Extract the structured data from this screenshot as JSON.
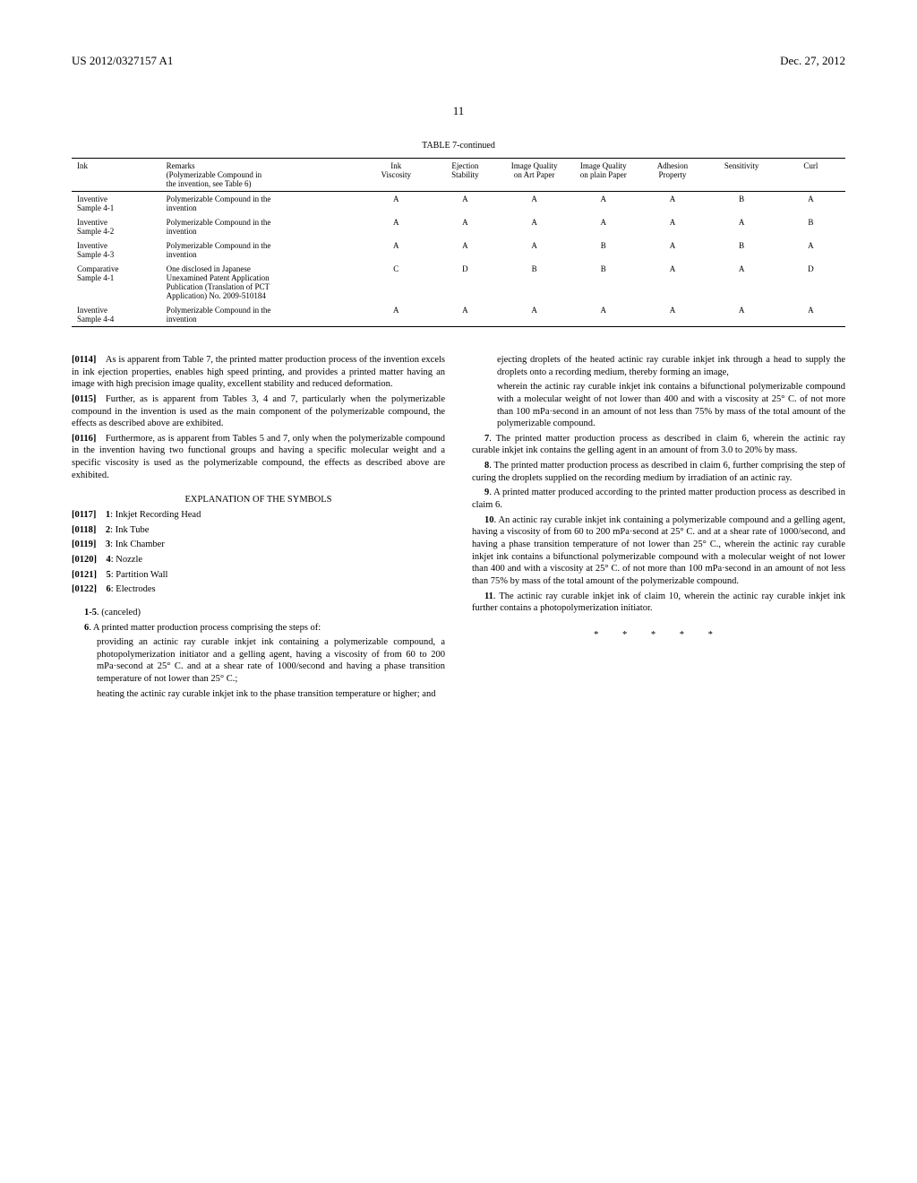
{
  "header": {
    "left": "US 2012/0327157 A1",
    "right": "Dec. 27, 2012"
  },
  "page_number": "11",
  "table": {
    "title": "TABLE 7-continued",
    "columns": [
      "Ink",
      "Remarks\n(Polymerizable Compound in\nthe invention, see Table 6)",
      "Ink\nViscosity",
      "Ejection\nStability",
      "Image Quality\non Art Paper",
      "Image Quality\non plain Paper",
      "Adhesion\nProperty",
      "Sensitivity",
      "Curl"
    ],
    "rows": [
      [
        "Inventive\nSample 4-1",
        "Polymerizable Compound in the\ninvention",
        "A",
        "A",
        "A",
        "A",
        "A",
        "B",
        "A"
      ],
      [
        "Inventive\nSample 4-2",
        "Polymerizable Compound in the\ninvention",
        "A",
        "A",
        "A",
        "A",
        "A",
        "A",
        "B"
      ],
      [
        "Inventive\nSample 4-3",
        "Polymerizable Compound in the\ninvention",
        "A",
        "A",
        "A",
        "B",
        "A",
        "B",
        "A"
      ],
      [
        "Comparative\nSample 4-1",
        "One disclosed in Japanese\nUnexamined Patent Application\nPublication (Translation of PCT\nApplication) No. 2009-510184",
        "C",
        "D",
        "B",
        "B",
        "A",
        "A",
        "D"
      ],
      [
        "Inventive\nSample 4-4",
        "Polymerizable Compound in the\ninvention",
        "A",
        "A",
        "A",
        "A",
        "A",
        "A",
        "A"
      ]
    ]
  },
  "left_col": {
    "p0114": "[0114] As is apparent from Table 7, the printed matter production process of the invention excels in ink ejection properties, enables high speed printing, and provides a printed matter having an image with high precision image quality, excellent stability and reduced deformation.",
    "p0115": "[0115] Further, as is apparent from Tables 3, 4 and 7, particularly when the polymerizable compound in the invention is used as the main component of the polymerizable compound, the effects as described above are exhibited.",
    "p0116": "[0116] Furthermore, as is apparent from Tables 5 and 7, only when the polymerizable compound in the invention having two functional groups and having a specific molecular weight and a specific viscosity is used as the polymerizable compound, the effects as described above are exhibited.",
    "section_title": "EXPLANATION OF THE SYMBOLS",
    "symbols": [
      "[0117] 1: Inkjet Recording Head",
      "[0118] 2: Ink Tube",
      "[0119] 3: Ink Chamber",
      "[0120] 4: Nozzle",
      "[0121] 5: Partition Wall",
      "[0122] 6: Electrodes"
    ],
    "claim_1_5": "1-5. (canceled)",
    "claim6_intro": "6. A printed matter production process comprising the steps of:",
    "claim6_a": "providing an actinic ray curable inkjet ink containing a polymerizable compound, a photopolymerization initiator and a gelling agent, having a viscosity of from 60 to 200 mPa·second at 25° C. and at a shear rate of 1000/second and having a phase transition temperature of not lower than 25° C.;",
    "claim6_b": "heating the actinic ray curable inkjet ink to the phase transition temperature or higher; and"
  },
  "right_col": {
    "claim6_c": "ejecting droplets of the heated actinic ray curable inkjet ink through a head to supply the droplets onto a recording medium, thereby forming an image,",
    "claim6_d": "wherein the actinic ray curable inkjet ink contains a bifunctional polymerizable compound with a molecular weight of not lower than 400 and with a viscosity at 25° C. of not more than 100 mPa·second in an amount of not less than 75% by mass of the total amount of the polymerizable compound.",
    "claim7": "7. The printed matter production process as described in claim 6, wherein the actinic ray curable inkjet ink contains the gelling agent in an amount of from 3.0 to 20% by mass.",
    "claim8": "8. The printed matter production process as described in claim 6, further comprising the step of curing the droplets supplied on the recording medium by irradiation of an actinic ray.",
    "claim9": "9. A printed matter produced according to the printed matter production process as described in claim 6.",
    "claim10": "10. An actinic ray curable inkjet ink containing a polymerizable compound and a gelling agent, having a viscosity of from 60 to 200 mPa·second at 25° C. and at a shear rate of 1000/second, and having a phase transition temperature of not lower than 25° C., wherein the actinic ray curable inkjet ink contains a bifunctional polymerizable compound with a molecular weight of not lower than 400 and with a viscosity at 25° C. of not more than 100 mPa·second in an amount of not less than 75% by mass of the total amount of the polymerizable compound.",
    "claim11": "11. The actinic ray curable inkjet ink of claim 10, wherein the actinic ray curable inkjet ink further contains a photopolymerization initiator.",
    "end_marks": "* * * * *"
  }
}
